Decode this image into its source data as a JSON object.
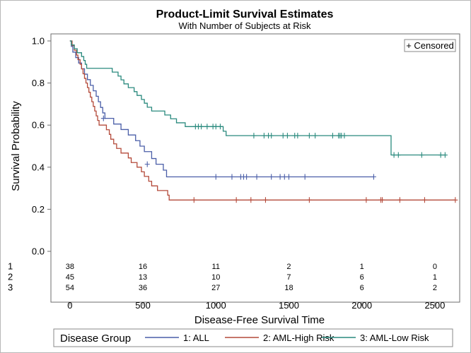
{
  "chart_data": {
    "type": "line",
    "title": "Product-Limit Survival Estimates",
    "subtitle": "With Number of Subjects at Risk",
    "xlabel": "Disease-Free Survival Time",
    "ylabel": "Survival Probability",
    "xlim": [
      -130,
      2670
    ],
    "ylim": [
      0,
      1.0
    ],
    "xticks": [
      0,
      500,
      1000,
      1500,
      2000,
      2500
    ],
    "yticks": [
      0.0,
      0.2,
      0.4,
      0.6,
      0.8,
      1.0
    ],
    "xtick_labels": [
      "0",
      "500",
      "1000",
      "1500",
      "2000",
      "2500"
    ],
    "ytick_labels": [
      "0.0",
      "0.2",
      "0.4",
      "0.6",
      "0.8",
      "1.0"
    ],
    "censored_label": "+ Censored",
    "legend": {
      "title": "Disease Group",
      "placement": "bottom"
    },
    "risk_table": {
      "times": [
        0,
        500,
        1000,
        1500,
        2000,
        2500
      ],
      "rows": [
        {
          "label": "1",
          "counts": [
            "38",
            "16",
            "11",
            "2",
            "1",
            "0"
          ]
        },
        {
          "label": "2",
          "counts": [
            "45",
            "13",
            "10",
            "7",
            "6",
            "1"
          ]
        },
        {
          "label": "3",
          "counts": [
            "54",
            "36",
            "27",
            "18",
            "6",
            "2"
          ]
        }
      ]
    },
    "series": [
      {
        "name": "1: ALL",
        "color": "#4a5ea8",
        "steps": [
          [
            0,
            1.0
          ],
          [
            10,
            0.974
          ],
          [
            20,
            0.947
          ],
          [
            40,
            0.921
          ],
          [
            60,
            0.895
          ],
          [
            80,
            0.868
          ],
          [
            100,
            0.842
          ],
          [
            120,
            0.816
          ],
          [
            140,
            0.789
          ],
          [
            160,
            0.763
          ],
          [
            180,
            0.737
          ],
          [
            195,
            0.711
          ],
          [
            210,
            0.684
          ],
          [
            225,
            0.658
          ],
          [
            240,
            0.632
          ],
          [
            300,
            0.605
          ],
          [
            350,
            0.579
          ],
          [
            400,
            0.553
          ],
          [
            450,
            0.526
          ],
          [
            480,
            0.5
          ],
          [
            510,
            0.474
          ],
          [
            560,
            0.441
          ],
          [
            590,
            0.414
          ],
          [
            640,
            0.386
          ],
          [
            662,
            0.354
          ]
        ],
        "end": 2081,
        "censored": [
          [
            230,
            0.632
          ],
          [
            530,
            0.414
          ],
          [
            1000,
            0.354
          ],
          [
            1110,
            0.354
          ],
          [
            1170,
            0.354
          ],
          [
            1190,
            0.354
          ],
          [
            1210,
            0.354
          ],
          [
            1280,
            0.354
          ],
          [
            1380,
            0.354
          ],
          [
            1440,
            0.354
          ],
          [
            1470,
            0.354
          ],
          [
            1500,
            0.354
          ],
          [
            1610,
            0.354
          ],
          [
            2081,
            0.354
          ]
        ]
      },
      {
        "name": "2: AML-High Risk",
        "color": "#b44a3a",
        "steps": [
          [
            0,
            1.0
          ],
          [
            15,
            0.978
          ],
          [
            30,
            0.956
          ],
          [
            45,
            0.933
          ],
          [
            55,
            0.911
          ],
          [
            70,
            0.889
          ],
          [
            80,
            0.867
          ],
          [
            90,
            0.844
          ],
          [
            100,
            0.822
          ],
          [
            110,
            0.8
          ],
          [
            120,
            0.778
          ],
          [
            130,
            0.756
          ],
          [
            140,
            0.733
          ],
          [
            150,
            0.711
          ],
          [
            160,
            0.689
          ],
          [
            170,
            0.667
          ],
          [
            180,
            0.644
          ],
          [
            190,
            0.622
          ],
          [
            200,
            0.6
          ],
          [
            250,
            0.578
          ],
          [
            270,
            0.556
          ],
          [
            280,
            0.533
          ],
          [
            300,
            0.511
          ],
          [
            320,
            0.489
          ],
          [
            350,
            0.467
          ],
          [
            400,
            0.444
          ],
          [
            420,
            0.422
          ],
          [
            460,
            0.4
          ],
          [
            490,
            0.378
          ],
          [
            510,
            0.356
          ],
          [
            540,
            0.333
          ],
          [
            560,
            0.311
          ],
          [
            600,
            0.289
          ],
          [
            670,
            0.267
          ],
          [
            680,
            0.244
          ]
        ],
        "end": 2640,
        "censored": [
          [
            850,
            0.244
          ],
          [
            1140,
            0.244
          ],
          [
            1240,
            0.244
          ],
          [
            1340,
            0.244
          ],
          [
            1640,
            0.244
          ],
          [
            2030,
            0.244
          ],
          [
            2130,
            0.244
          ],
          [
            2140,
            0.244
          ],
          [
            2260,
            0.244
          ],
          [
            2430,
            0.244
          ],
          [
            2640,
            0.244
          ]
        ]
      },
      {
        "name": "3: AML-Low Risk",
        "color": "#2a8a7e",
        "steps": [
          [
            0,
            1.0
          ],
          [
            10,
            0.981
          ],
          [
            30,
            0.963
          ],
          [
            50,
            0.944
          ],
          [
            80,
            0.926
          ],
          [
            95,
            0.907
          ],
          [
            105,
            0.889
          ],
          [
            115,
            0.87
          ],
          [
            290,
            0.852
          ],
          [
            330,
            0.833
          ],
          [
            350,
            0.815
          ],
          [
            370,
            0.796
          ],
          [
            400,
            0.778
          ],
          [
            440,
            0.759
          ],
          [
            460,
            0.741
          ],
          [
            490,
            0.722
          ],
          [
            510,
            0.704
          ],
          [
            530,
            0.685
          ],
          [
            560,
            0.667
          ],
          [
            650,
            0.648
          ],
          [
            690,
            0.63
          ],
          [
            730,
            0.611
          ],
          [
            790,
            0.593
          ],
          [
            1050,
            0.571
          ],
          [
            1070,
            0.55
          ],
          [
            2200,
            0.458
          ]
        ],
        "end": 2570,
        "censored": [
          [
            860,
            0.593
          ],
          [
            880,
            0.593
          ],
          [
            900,
            0.593
          ],
          [
            940,
            0.593
          ],
          [
            980,
            0.593
          ],
          [
            1000,
            0.593
          ],
          [
            1030,
            0.593
          ],
          [
            1260,
            0.55
          ],
          [
            1330,
            0.55
          ],
          [
            1360,
            0.55
          ],
          [
            1380,
            0.55
          ],
          [
            1460,
            0.55
          ],
          [
            1490,
            0.55
          ],
          [
            1540,
            0.55
          ],
          [
            1560,
            0.55
          ],
          [
            1640,
            0.55
          ],
          [
            1680,
            0.55
          ],
          [
            1800,
            0.55
          ],
          [
            1840,
            0.55
          ],
          [
            1850,
            0.55
          ],
          [
            1860,
            0.55
          ],
          [
            1880,
            0.55
          ],
          [
            2220,
            0.458
          ],
          [
            2250,
            0.458
          ],
          [
            2410,
            0.458
          ],
          [
            2540,
            0.458
          ],
          [
            2570,
            0.458
          ]
        ]
      }
    ]
  }
}
